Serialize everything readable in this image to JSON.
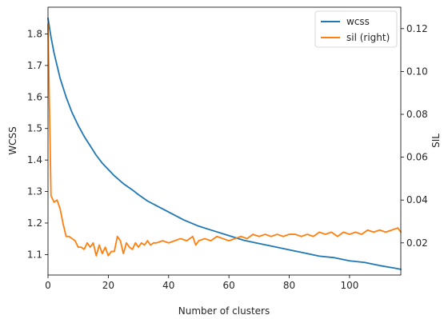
{
  "chart_data": {
    "type": "line",
    "xlabel": "Number of clusters",
    "ylabel_left": "WCSS",
    "ylabel_right": "SIL",
    "xlim": [
      0,
      117
    ],
    "ylim_left": [
      1.035,
      1.885
    ],
    "ylim_right": [
      0.005,
      0.13
    ],
    "x_ticks": [
      0,
      20,
      40,
      60,
      80,
      100
    ],
    "y_left_ticks": [
      1.1,
      1.2,
      1.3,
      1.4,
      1.5,
      1.6,
      1.7,
      1.8
    ],
    "y_right_ticks": [
      0.02,
      0.04,
      0.06,
      0.08,
      0.1,
      0.12
    ],
    "grid": false,
    "legend_position": "top-right",
    "series": [
      {
        "name": "wcss",
        "axis": "left",
        "color": "#1f77b4",
        "x": [
          0,
          1,
          2,
          3,
          4,
          5,
          6,
          7,
          8,
          9,
          10,
          12,
          14,
          16,
          18,
          20,
          22,
          25,
          28,
          30,
          33,
          36,
          40,
          45,
          50,
          55,
          60,
          65,
          70,
          75,
          80,
          85,
          90,
          95,
          100,
          105,
          110,
          115,
          117
        ],
        "values": [
          1.85,
          1.79,
          1.74,
          1.7,
          1.66,
          1.63,
          1.6,
          1.575,
          1.55,
          1.53,
          1.51,
          1.475,
          1.445,
          1.415,
          1.39,
          1.37,
          1.35,
          1.325,
          1.305,
          1.29,
          1.27,
          1.255,
          1.235,
          1.21,
          1.19,
          1.175,
          1.16,
          1.145,
          1.135,
          1.125,
          1.115,
          1.105,
          1.095,
          1.09,
          1.08,
          1.075,
          1.065,
          1.057,
          1.053
        ]
      },
      {
        "name": "sil (right)",
        "axis": "right",
        "color": "#ff7f0e",
        "x": [
          0,
          1,
          2,
          3,
          4,
          5,
          6,
          7,
          8,
          9,
          10,
          11,
          12,
          13,
          14,
          15,
          16,
          17,
          18,
          19,
          20,
          21,
          22,
          23,
          24,
          25,
          26,
          27,
          28,
          29,
          30,
          31,
          32,
          33,
          34,
          35,
          36,
          38,
          40,
          42,
          44,
          46,
          48,
          49,
          50,
          52,
          54,
          56,
          58,
          60,
          62,
          64,
          66,
          68,
          70,
          72,
          74,
          76,
          78,
          80,
          82,
          84,
          86,
          88,
          90,
          92,
          94,
          96,
          98,
          100,
          102,
          104,
          106,
          108,
          110,
          112,
          114,
          116,
          117
        ],
        "values": [
          0.122,
          0.042,
          0.039,
          0.04,
          0.036,
          0.029,
          0.023,
          0.023,
          0.022,
          0.021,
          0.018,
          0.018,
          0.017,
          0.02,
          0.018,
          0.02,
          0.014,
          0.019,
          0.015,
          0.018,
          0.014,
          0.016,
          0.016,
          0.023,
          0.021,
          0.015,
          0.02,
          0.018,
          0.017,
          0.02,
          0.018,
          0.02,
          0.019,
          0.021,
          0.019,
          0.02,
          0.02,
          0.021,
          0.02,
          0.021,
          0.022,
          0.021,
          0.023,
          0.019,
          0.021,
          0.022,
          0.021,
          0.023,
          0.022,
          0.021,
          0.022,
          0.023,
          0.022,
          0.024,
          0.023,
          0.024,
          0.023,
          0.024,
          0.023,
          0.024,
          0.024,
          0.023,
          0.024,
          0.023,
          0.025,
          0.024,
          0.025,
          0.023,
          0.025,
          0.024,
          0.025,
          0.024,
          0.026,
          0.025,
          0.026,
          0.025,
          0.026,
          0.027,
          0.025
        ]
      }
    ]
  }
}
